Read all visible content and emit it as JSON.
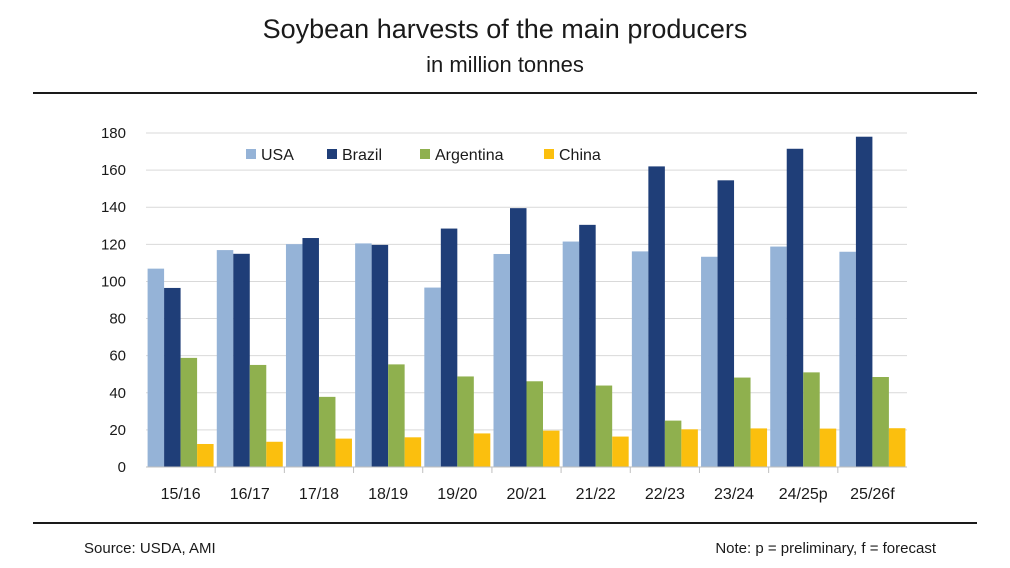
{
  "chart_data": {
    "type": "bar",
    "title": "Soybean harvests of the main producers",
    "subtitle": "in million tonnes",
    "categories": [
      "15/16",
      "16/17",
      "17/18",
      "18/19",
      "19/20",
      "20/21",
      "21/22",
      "22/23",
      "23/24",
      "24/25p",
      "25/26f"
    ],
    "series": [
      {
        "name": "USA",
        "color": "#95b3d7",
        "values": [
          106.9,
          116.9,
          120.1,
          120.5,
          96.7,
          114.8,
          121.5,
          116.2,
          113.3,
          118.8,
          116.0
        ]
      },
      {
        "name": "Brazil",
        "color": "#1f3e78",
        "values": [
          96.5,
          114.9,
          123.4,
          119.7,
          128.5,
          139.5,
          130.5,
          162.0,
          154.5,
          171.5,
          178.0
        ]
      },
      {
        "name": "Argentina",
        "color": "#8fb04e",
        "values": [
          58.8,
          55.0,
          37.8,
          55.3,
          48.8,
          46.2,
          43.9,
          25.0,
          48.2,
          51.0,
          48.5
        ]
      },
      {
        "name": "China",
        "color": "#fbbf0e",
        "values": [
          12.4,
          13.6,
          15.3,
          16.0,
          18.1,
          19.6,
          16.4,
          20.3,
          20.8,
          20.7,
          20.9
        ]
      }
    ],
    "ylim": [
      0,
      180
    ],
    "yticks": [
      0,
      20,
      40,
      60,
      80,
      100,
      120,
      140,
      160,
      180
    ],
    "grid": true,
    "legend_position": "top-left inside"
  },
  "footer": {
    "source": "Source: USDA, AMI",
    "note": "Note: p = preliminary, f = forecast"
  }
}
